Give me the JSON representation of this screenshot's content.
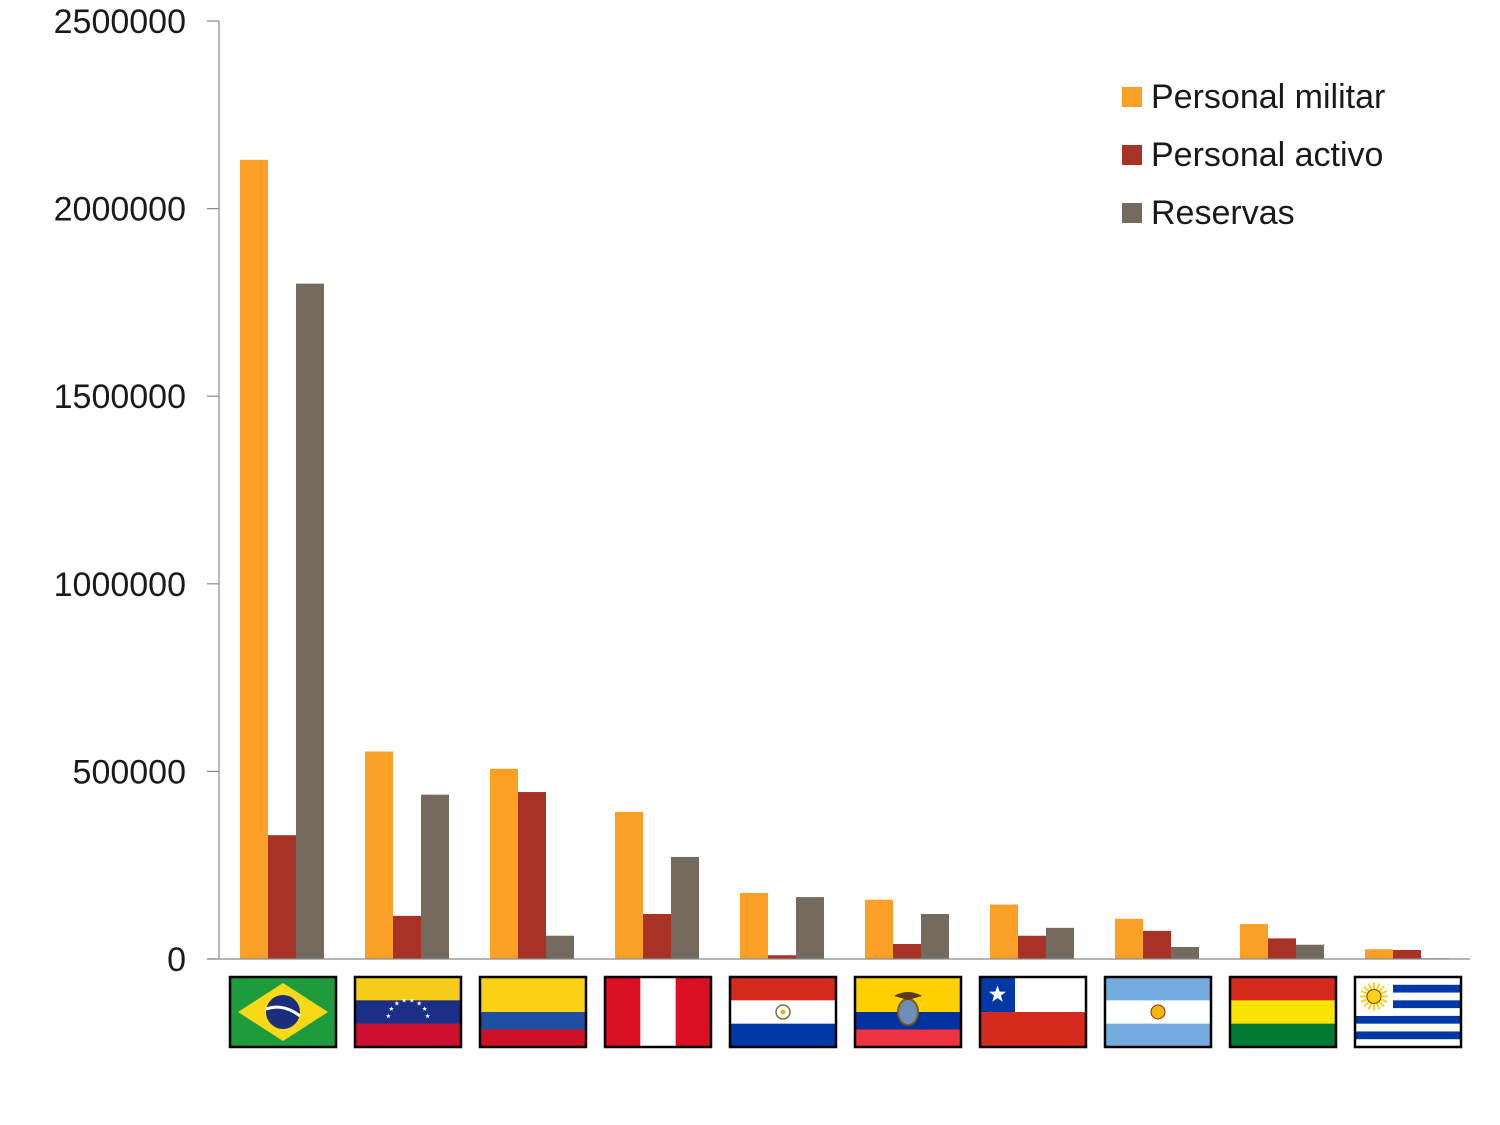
{
  "chart_data": {
    "type": "bar",
    "categories": [
      "Brasil",
      "Venezuela",
      "Colombia",
      "Perú",
      "Paraguay",
      "Ecuador",
      "Chile",
      "Argentina",
      "Bolivia",
      "Uruguay"
    ],
    "category_icons": [
      "flag-brazil",
      "flag-venezuela",
      "flag-colombia",
      "flag-peru",
      "flag-paraguay",
      "flag-ecuador",
      "flag-chile",
      "flag-argentina",
      "flag-bolivia",
      "flag-uruguay"
    ],
    "series": [
      {
        "name": "Personal militar",
        "color": "#FBA026",
        "values": [
          2130000,
          553000,
          507000,
          392000,
          176000,
          158000,
          145000,
          107000,
          93000,
          26000
        ]
      },
      {
        "name": "Personal activo",
        "color": "#A93226",
        "values": [
          330000,
          115000,
          445000,
          120000,
          10000,
          40000,
          62000,
          75000,
          55000,
          24000
        ]
      },
      {
        "name": "Reservas",
        "color": "#756A5E",
        "values": [
          1800000,
          438000,
          62000,
          272000,
          165000,
          120000,
          83000,
          32000,
          38000,
          2000
        ]
      }
    ],
    "title": "",
    "xlabel": "",
    "ylabel": "",
    "ylim": [
      0,
      2500000
    ],
    "yticks": [
      "0",
      "500000",
      "1000000",
      "1500000",
      "2000000",
      "2500000"
    ],
    "grid": false,
    "legend_position": "top-right"
  }
}
